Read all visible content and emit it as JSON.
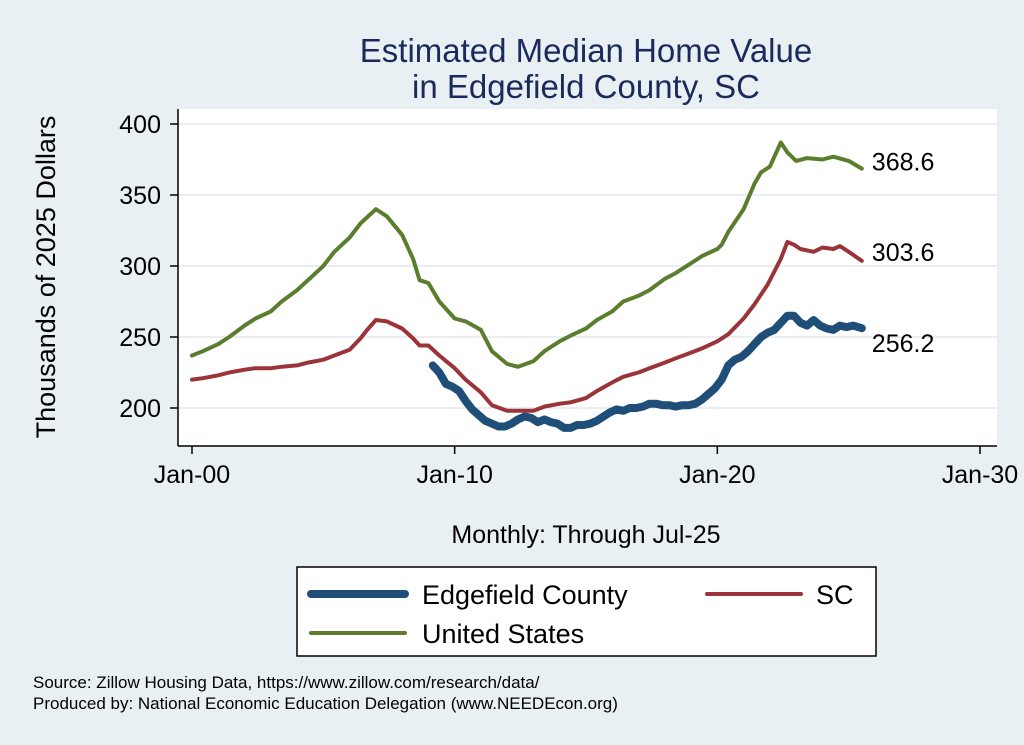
{
  "colors": {
    "background": "#e9f0f4",
    "plot_background": "#ffffff",
    "title": "#1b2a5a",
    "edgefield": "#1f4e79",
    "sc": "#9b3438",
    "us": "#5a7d2e",
    "grid": "#e3e8ec",
    "text": "#000000"
  },
  "chart_data": {
    "type": "line",
    "title": [
      "Estimated Median Home Value",
      "in Edgefield County, SC"
    ],
    "ylabel": "Thousands of 2025 Dollars",
    "xlabel": "Monthly: Through Jul-25",
    "x_range": [
      "2000-01",
      "2030-01"
    ],
    "ylim": [
      180,
      410
    ],
    "x_ticks": [
      {
        "date": "2000-01",
        "label": "Jan-00"
      },
      {
        "date": "2010-01",
        "label": "Jan-10"
      },
      {
        "date": "2020-01",
        "label": "Jan-20"
      },
      {
        "date": "2030-01",
        "label": "Jan-30"
      }
    ],
    "y_ticks": [
      200,
      250,
      300,
      350,
      400
    ],
    "grid": true,
    "legend_position": "bottom",
    "series": [
      {
        "name": "Edgefield County",
        "color_key": "edgefield",
        "end_label": "256.2",
        "points": [
          [
            "2009-03",
            230
          ],
          [
            "2009-06",
            225
          ],
          [
            "2009-09",
            217
          ],
          [
            "2009-12",
            215
          ],
          [
            "2010-03",
            212
          ],
          [
            "2010-06",
            205
          ],
          [
            "2010-09",
            199
          ],
          [
            "2010-12",
            195
          ],
          [
            "2011-03",
            191
          ],
          [
            "2011-06",
            189
          ],
          [
            "2011-09",
            187
          ],
          [
            "2011-12",
            187
          ],
          [
            "2012-03",
            189
          ],
          [
            "2012-06",
            192
          ],
          [
            "2012-09",
            194
          ],
          [
            "2012-12",
            193
          ],
          [
            "2013-03",
            190
          ],
          [
            "2013-06",
            192
          ],
          [
            "2013-09",
            190
          ],
          [
            "2013-12",
            189
          ],
          [
            "2014-03",
            186
          ],
          [
            "2014-06",
            186
          ],
          [
            "2014-09",
            188
          ],
          [
            "2014-12",
            188
          ],
          [
            "2015-03",
            189
          ],
          [
            "2015-06",
            191
          ],
          [
            "2015-09",
            194
          ],
          [
            "2015-12",
            197
          ],
          [
            "2016-03",
            199
          ],
          [
            "2016-06",
            198
          ],
          [
            "2016-09",
            200
          ],
          [
            "2016-12",
            200
          ],
          [
            "2017-03",
            201
          ],
          [
            "2017-06",
            203
          ],
          [
            "2017-09",
            203
          ],
          [
            "2017-12",
            202
          ],
          [
            "2018-03",
            202
          ],
          [
            "2018-06",
            201
          ],
          [
            "2018-09",
            202
          ],
          [
            "2018-12",
            202
          ],
          [
            "2019-03",
            203
          ],
          [
            "2019-06",
            206
          ],
          [
            "2019-09",
            210
          ],
          [
            "2019-12",
            214
          ],
          [
            "2020-03",
            220
          ],
          [
            "2020-06",
            230
          ],
          [
            "2020-09",
            234
          ],
          [
            "2020-12",
            236
          ],
          [
            "2021-03",
            240
          ],
          [
            "2021-06",
            245
          ],
          [
            "2021-09",
            250
          ],
          [
            "2021-12",
            253
          ],
          [
            "2022-03",
            255
          ],
          [
            "2022-06",
            260
          ],
          [
            "2022-09",
            265
          ],
          [
            "2022-12",
            265
          ],
          [
            "2023-03",
            260
          ],
          [
            "2023-06",
            258
          ],
          [
            "2023-09",
            262
          ],
          [
            "2023-12",
            258
          ],
          [
            "2024-03",
            256
          ],
          [
            "2024-06",
            255
          ],
          [
            "2024-09",
            258
          ],
          [
            "2024-12",
            257
          ],
          [
            "2025-03",
            258
          ],
          [
            "2025-07",
            256.2
          ]
        ]
      },
      {
        "name": "SC",
        "color_key": "sc",
        "end_label": "303.6",
        "points": [
          [
            "2000-01",
            220
          ],
          [
            "2000-06",
            221
          ],
          [
            "2001-01",
            223
          ],
          [
            "2001-06",
            225
          ],
          [
            "2002-01",
            227
          ],
          [
            "2002-06",
            228
          ],
          [
            "2003-01",
            228
          ],
          [
            "2003-06",
            229
          ],
          [
            "2004-01",
            230
          ],
          [
            "2004-06",
            232
          ],
          [
            "2005-01",
            234
          ],
          [
            "2005-06",
            237
          ],
          [
            "2006-01",
            241
          ],
          [
            "2006-06",
            249
          ],
          [
            "2006-09",
            255
          ],
          [
            "2007-01",
            262
          ],
          [
            "2007-06",
            261
          ],
          [
            "2008-01",
            256
          ],
          [
            "2008-06",
            249
          ],
          [
            "2008-09",
            244
          ],
          [
            "2009-01",
            244
          ],
          [
            "2009-06",
            237
          ],
          [
            "2010-01",
            228
          ],
          [
            "2010-06",
            220
          ],
          [
            "2011-01",
            211
          ],
          [
            "2011-06",
            202
          ],
          [
            "2012-01",
            198
          ],
          [
            "2012-06",
            198
          ],
          [
            "2013-01",
            198
          ],
          [
            "2013-06",
            201
          ],
          [
            "2014-01",
            203
          ],
          [
            "2014-06",
            204
          ],
          [
            "2015-01",
            207
          ],
          [
            "2015-06",
            212
          ],
          [
            "2016-01",
            218
          ],
          [
            "2016-06",
            222
          ],
          [
            "2017-01",
            225
          ],
          [
            "2017-06",
            228
          ],
          [
            "2018-01",
            232
          ],
          [
            "2018-06",
            235
          ],
          [
            "2019-01",
            239
          ],
          [
            "2019-06",
            242
          ],
          [
            "2020-01",
            247
          ],
          [
            "2020-06",
            252
          ],
          [
            "2021-01",
            263
          ],
          [
            "2021-06",
            273
          ],
          [
            "2021-12",
            287
          ],
          [
            "2022-06",
            305
          ],
          [
            "2022-09",
            317
          ],
          [
            "2022-12",
            315
          ],
          [
            "2023-03",
            312
          ],
          [
            "2023-09",
            310
          ],
          [
            "2024-01",
            313
          ],
          [
            "2024-06",
            312
          ],
          [
            "2024-09",
            314
          ],
          [
            "2025-01",
            310
          ],
          [
            "2025-07",
            303.6
          ]
        ]
      },
      {
        "name": "United States",
        "color_key": "us",
        "end_label": "368.6",
        "points": [
          [
            "2000-01",
            237
          ],
          [
            "2000-06",
            240
          ],
          [
            "2001-01",
            245
          ],
          [
            "2001-06",
            250
          ],
          [
            "2002-01",
            258
          ],
          [
            "2002-06",
            263
          ],
          [
            "2003-01",
            268
          ],
          [
            "2003-06",
            275
          ],
          [
            "2004-01",
            283
          ],
          [
            "2004-06",
            290
          ],
          [
            "2005-01",
            300
          ],
          [
            "2005-06",
            310
          ],
          [
            "2006-01",
            320
          ],
          [
            "2006-06",
            330
          ],
          [
            "2007-01",
            340
          ],
          [
            "2007-06",
            335
          ],
          [
            "2008-01",
            322
          ],
          [
            "2008-06",
            305
          ],
          [
            "2008-09",
            290
          ],
          [
            "2009-01",
            288
          ],
          [
            "2009-06",
            275
          ],
          [
            "2010-01",
            263
          ],
          [
            "2010-06",
            261
          ],
          [
            "2011-01",
            255
          ],
          [
            "2011-06",
            240
          ],
          [
            "2012-01",
            231
          ],
          [
            "2012-06",
            229
          ],
          [
            "2013-01",
            233
          ],
          [
            "2013-06",
            240
          ],
          [
            "2014-01",
            247
          ],
          [
            "2014-06",
            251
          ],
          [
            "2015-01",
            256
          ],
          [
            "2015-06",
            262
          ],
          [
            "2016-01",
            268
          ],
          [
            "2016-06",
            275
          ],
          [
            "2017-01",
            279
          ],
          [
            "2017-06",
            283
          ],
          [
            "2018-01",
            291
          ],
          [
            "2018-06",
            295
          ],
          [
            "2019-01",
            302
          ],
          [
            "2019-06",
            307
          ],
          [
            "2020-01",
            312
          ],
          [
            "2020-03",
            315
          ],
          [
            "2020-06",
            324
          ],
          [
            "2021-01",
            340
          ],
          [
            "2021-06",
            358
          ],
          [
            "2021-09",
            366
          ],
          [
            "2022-01",
            370
          ],
          [
            "2022-06",
            387
          ],
          [
            "2022-09",
            380
          ],
          [
            "2023-01",
            374
          ],
          [
            "2023-06",
            376
          ],
          [
            "2024-01",
            375
          ],
          [
            "2024-06",
            377
          ],
          [
            "2025-01",
            374
          ],
          [
            "2025-07",
            368.6
          ]
        ]
      }
    ]
  },
  "legend": {
    "items": [
      {
        "label": "Edgefield County",
        "color_key": "edgefield",
        "width": 8
      },
      {
        "label": "SC",
        "color_key": "sc",
        "width": 4
      },
      {
        "label": "United States",
        "color_key": "us",
        "width": 4
      }
    ]
  },
  "footer": {
    "source": "Source: Zillow Housing Data, https://www.zillow.com/research/data/",
    "produced": "Produced by: National Economic Education Delegation (www.NEEDEcon.org)"
  }
}
